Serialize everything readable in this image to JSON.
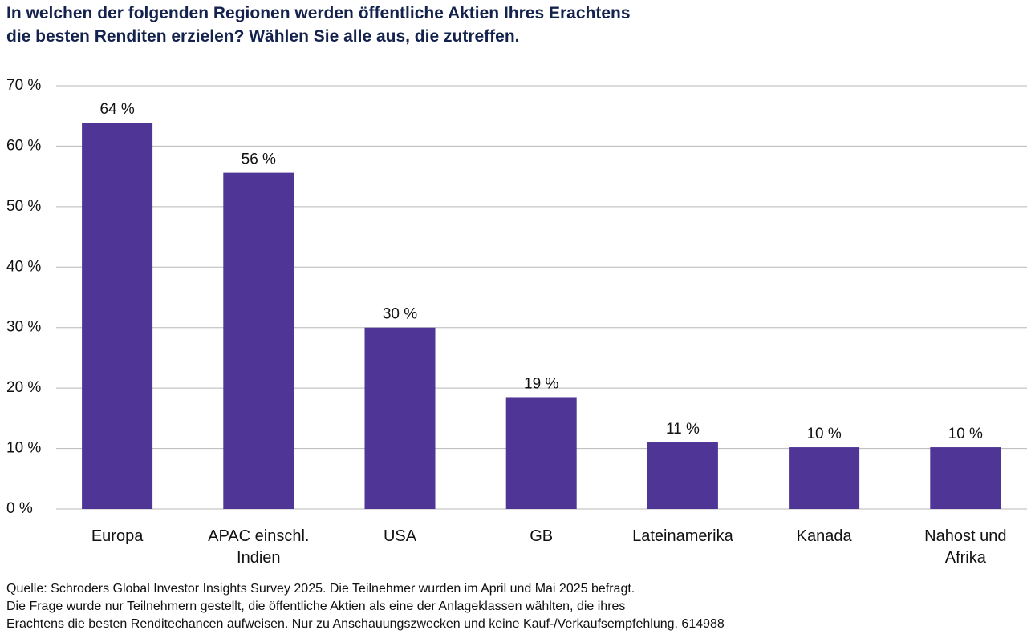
{
  "chart_data": {
    "type": "bar",
    "title": "In welchen der folgenden Regionen werden öffentliche Aktien Ihres Erachtens\ndie besten Renditen erzielen? Wählen Sie alle aus, die zutreffen.",
    "categories": [
      "Europa",
      "APAC einschl.\nIndien",
      "USA",
      "GB",
      "Lateinamerika",
      "Kanada",
      "Nahost und\nAfrika"
    ],
    "values": [
      63.9,
      55.6,
      30,
      18.5,
      11,
      10.2,
      10.2
    ],
    "value_labels": [
      "64 %",
      "56 %",
      "30 %",
      "19 %",
      "11 %",
      "10 %",
      "10 %"
    ],
    "color": "#4f3596",
    "ylim": [
      0,
      70
    ],
    "yticks": [
      {
        "value": 0,
        "label": "0 %"
      },
      {
        "value": 10,
        "label": "10 %"
      },
      {
        "value": 20,
        "label": "20 %"
      },
      {
        "value": 30,
        "label": "30 %"
      },
      {
        "value": 40,
        "label": "40 %"
      },
      {
        "value": 50,
        "label": "50 %"
      },
      {
        "value": 60,
        "label": "60 %"
      },
      {
        "value": 70,
        "label": "70 %"
      }
    ],
    "grid": true,
    "note": "Quelle: Schroders Global Investor Insights Survey 2025. Die Teilnehmer wurden im April und Mai 2025 befragt.\nDie Frage wurde nur Teilnehmern gestellt, die öffentliche Aktien als eine der Anlageklassen wählten, die ihres\nErachtens die besten Renditechancen aufweisen. Nur zu Anschauungszwecken und keine Kauf-/Verkaufsempfehlung. 614988"
  }
}
